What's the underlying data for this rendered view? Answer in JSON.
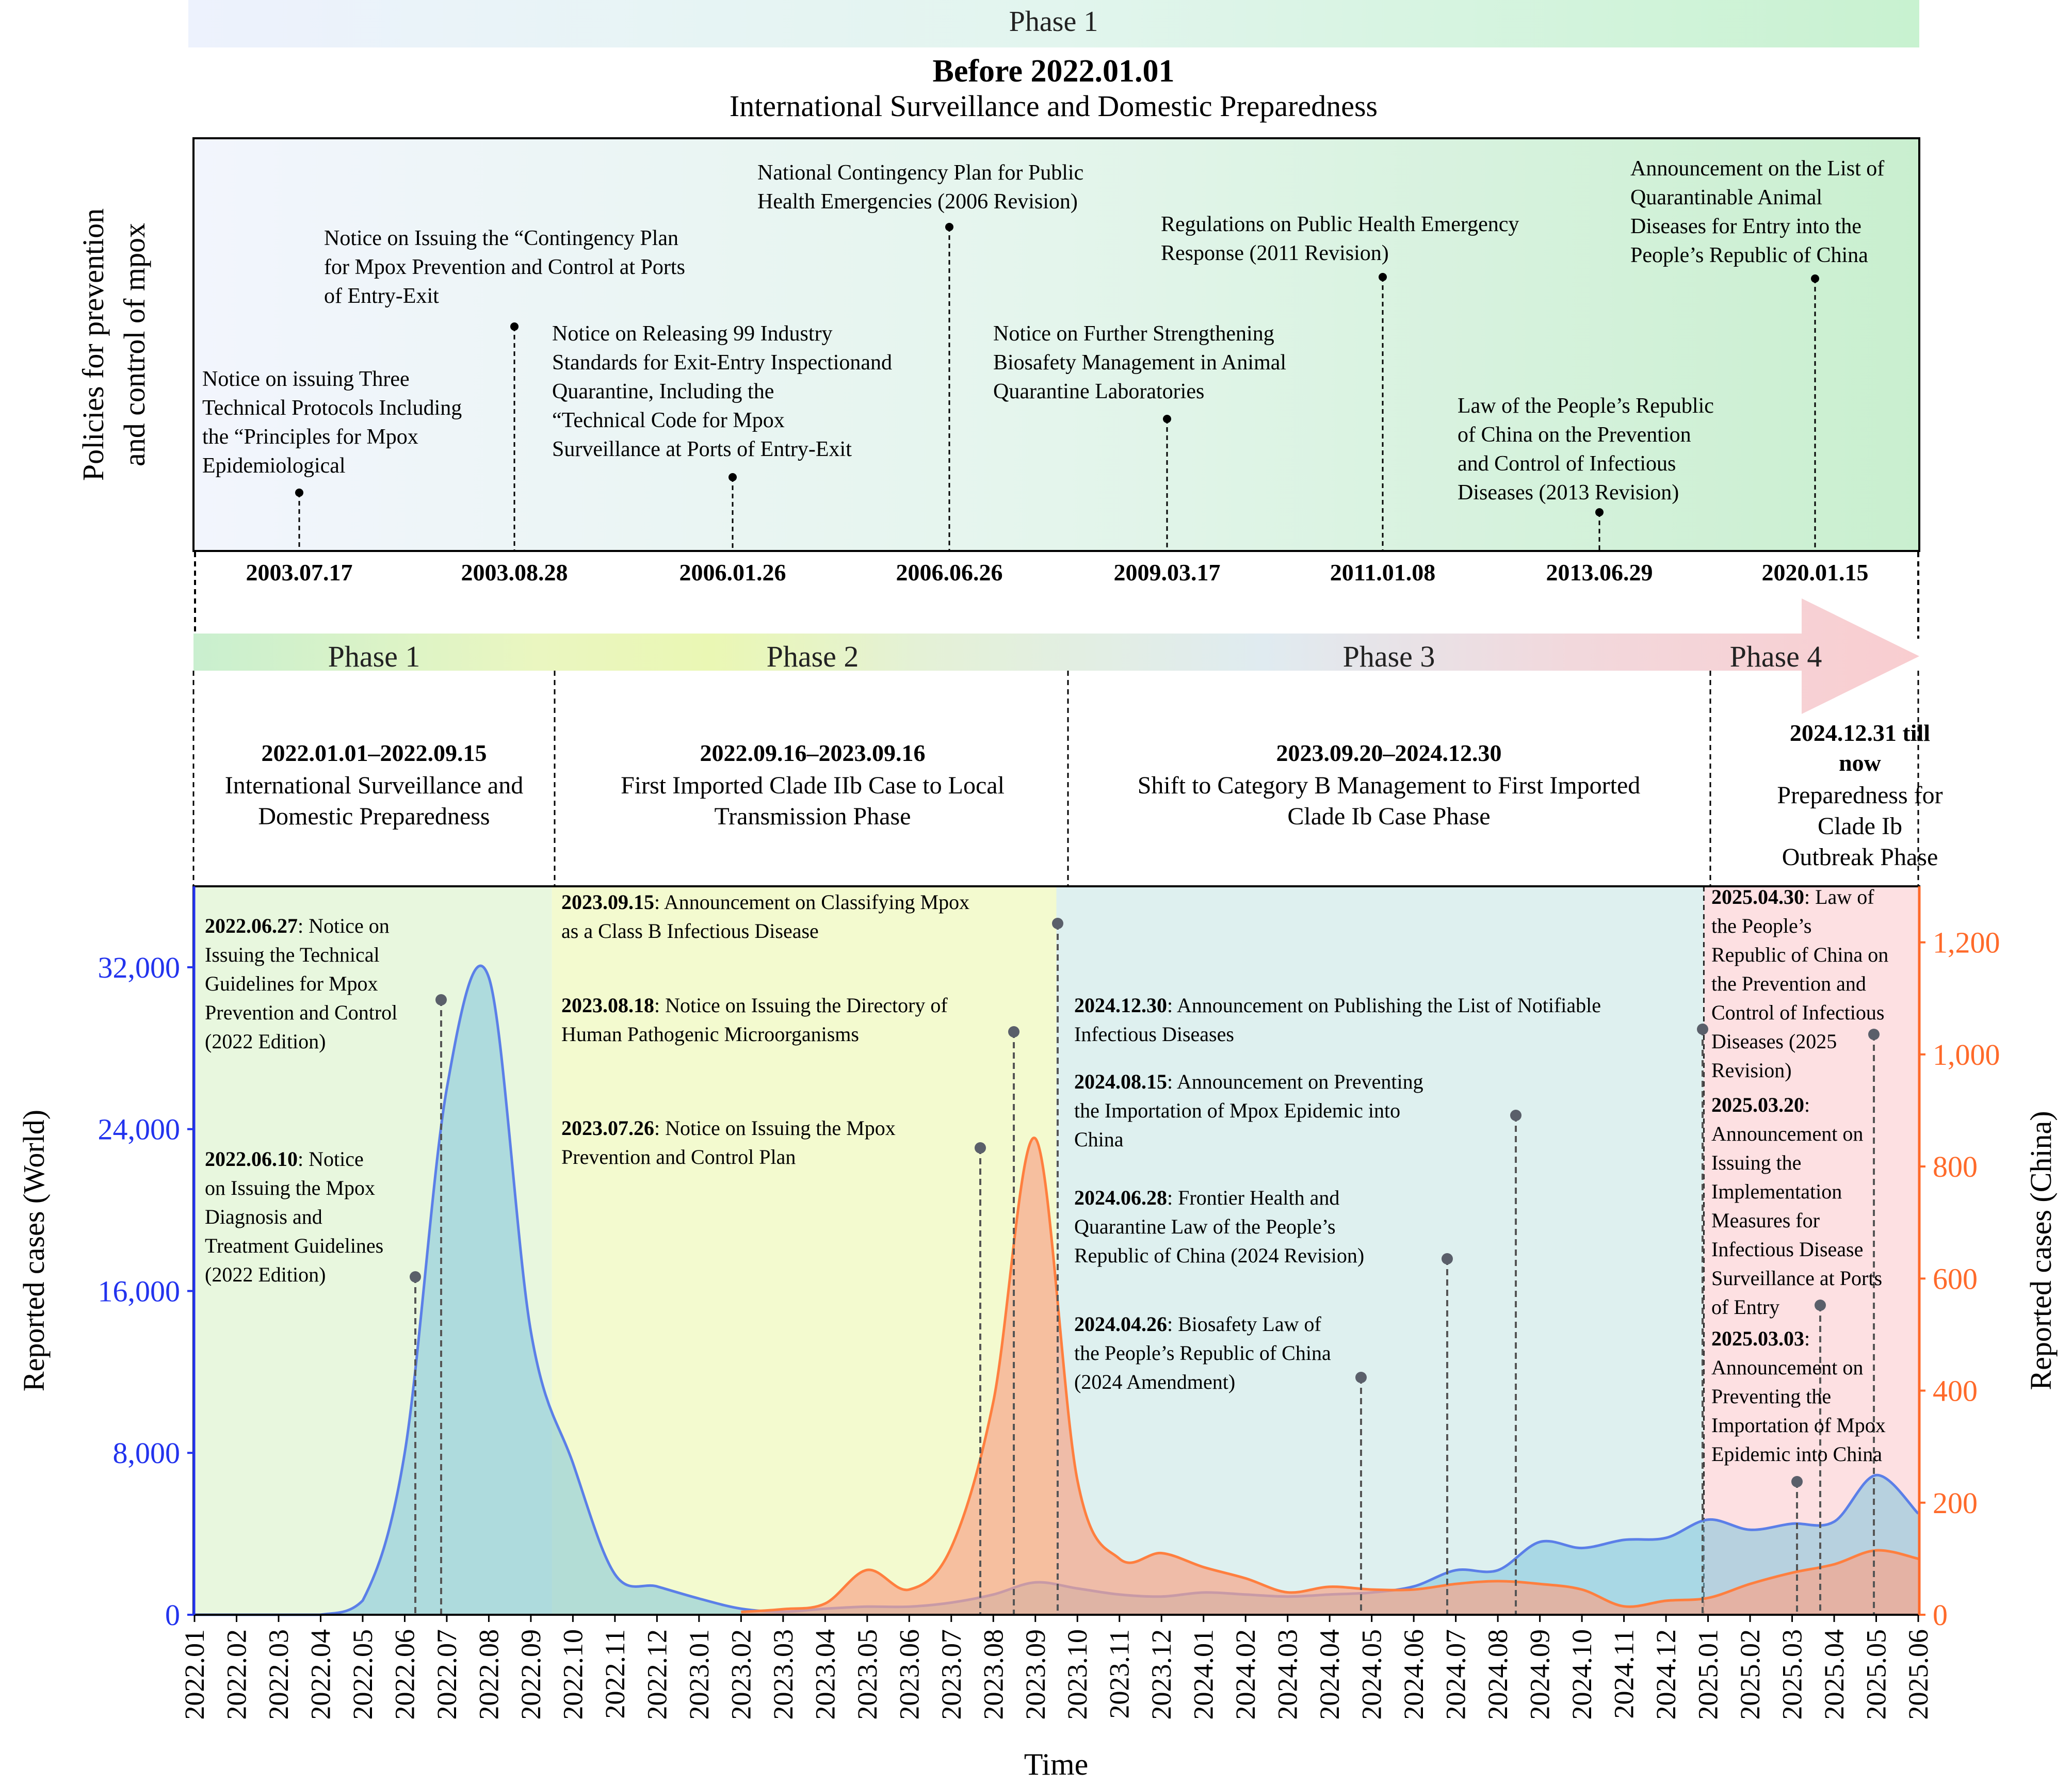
{
  "top": {
    "phase_label": "Phase 1",
    "title_bold": "Before 2022.01.01",
    "subtitle": "International Surveillance and Domestic Preparedness",
    "ylabel_lines": [
      "Policies for prevention",
      "and control of mpox"
    ]
  },
  "policies": [
    {
      "date": "2003.07.17",
      "lines": [
        "Notice on issuing Three",
        "Technical Protocols Including",
        "the “Principles for Mpox",
        "Epidemiological"
      ]
    },
    {
      "date": "2003.08.28",
      "lines": [
        "Notice on Issuing the “Contingency Plan",
        "for Mpox Prevention and Control at Ports",
        "of Entry-Exit"
      ]
    },
    {
      "date": "2006.01.26",
      "lines": [
        "Notice on Releasing 99 Industry",
        "Standards for Exit-Entry Inspectionand",
        "Quarantine, Including the",
        "“Technical Code for Mpox",
        "Surveillance at Ports of Entry-Exit"
      ]
    },
    {
      "date": "2006.06.26",
      "lines": [
        "National Contingency Plan for Public",
        "Health Emergencies (2006 Revision)"
      ]
    },
    {
      "date": "2009.03.17",
      "lines": [
        "Notice on Further Strengthening",
        "Biosafety Management in Animal",
        "Quarantine Laboratories"
      ]
    },
    {
      "date": "2011.01.08",
      "lines": [
        "Regulations on Public Health Emergency",
        "Response (2011 Revision)"
      ]
    },
    {
      "date": "2013.06.29",
      "lines": [
        "Law of the People’s Republic",
        "of China on the Prevention",
        "and Control of Infectious",
        "Diseases (2013 Revision)"
      ]
    },
    {
      "date": "2020.01.15",
      "lines": [
        "Announcement on the List of",
        "Quarantinable Animal",
        "Diseases for Entry into the",
        "People’s Republic of China"
      ]
    }
  ],
  "phases": [
    {
      "label": "Phase 1",
      "dates": "2022.01.01–2022.09.15",
      "desc": [
        "International Surveillance and",
        "Domestic Preparedness"
      ]
    },
    {
      "label": "Phase 2",
      "dates": "2022.09.16–2023.09.16",
      "desc": [
        "First Imported Clade IIb Case to Local",
        "Transmission Phase"
      ]
    },
    {
      "label": "Phase 3",
      "dates": "2023.09.20–2024.12.30",
      "desc": [
        "Shift to Category B Management to First Imported",
        "Clade Ib Case Phase"
      ]
    },
    {
      "label": "Phase 4",
      "dates": [
        "2024.12.31 till",
        "now"
      ],
      "desc": [
        "Preparedness for",
        "Clade Ib",
        "Outbreak Phase"
      ]
    }
  ],
  "annotations": [
    {
      "date": "2022.06.27",
      "lines": [
        "Notice on",
        "Issuing the Technical",
        "Guidelines for Mpox",
        "Prevention and Control",
        "(2022 Edition)"
      ]
    },
    {
      "date": "2022.06.10",
      "lines": [
        "Notice",
        "on Issuing the Mpox",
        "Diagnosis and",
        "Treatment Guidelines",
        "(2022 Edition)"
      ]
    },
    {
      "date": "2023.09.15",
      "lines": [
        "Announcement on Classifying Mpox",
        "as a Class B Infectious Disease"
      ]
    },
    {
      "date": "2023.08.18",
      "lines": [
        "Notice on Issuing the Directory of",
        "Human Pathogenic Microorganisms"
      ]
    },
    {
      "date": "2023.07.26",
      "lines": [
        "Notice on Issuing the Mpox",
        "Prevention and Control Plan"
      ]
    },
    {
      "date": "2024.12.30",
      "lines": [
        "Announcement on Publishing the List of Notifiable",
        "Infectious Diseases"
      ]
    },
    {
      "date": "2024.08.15",
      "lines": [
        "Announcement on Preventing",
        "the Importation of Mpox Epidemic into",
        "China"
      ]
    },
    {
      "date": "2024.06.28",
      "lines": [
        "Frontier Health and",
        "Quarantine Law of the People’s",
        "Republic of China (2024 Revision)"
      ]
    },
    {
      "date": "2024.04.26",
      "lines": [
        "Biosafety Law of",
        "the People’s Republic of China",
        "(2024 Amendment)"
      ]
    },
    {
      "date": "2025.04.30",
      "lines": [
        "Law of",
        "the People’s",
        "Republic of China on",
        "the Prevention and",
        "Control of Infectious",
        "Diseases (2025",
        "Revision)"
      ]
    },
    {
      "date": "2025.03.20",
      "lines": [
        ":",
        "Announcement on",
        "Issuing the",
        "Implementation",
        "Measures for",
        "Infectious Disease",
        "Surveillance at Ports",
        "of Entry"
      ]
    },
    {
      "date": "2025.03.03",
      "lines": [
        ":",
        "Announcement on",
        "Preventing the",
        "Importation of Mpox",
        "Epidemic into China"
      ]
    }
  ],
  "chart_data": {
    "type": "area",
    "xlabel": "Time",
    "ylabel_left": "Reported cases (World)",
    "ylabel_right": "Reported cases (China)",
    "ylim_left": [
      0,
      36000
    ],
    "ylim_right": [
      0,
      1300
    ],
    "yticks_left": [
      "0",
      "8,000",
      "16,000",
      "24,000",
      "32,000"
    ],
    "yticks_right": [
      "0",
      "200",
      "400",
      "600",
      "800",
      "1,000",
      "1,200"
    ],
    "x": [
      "2022.01",
      "2022.02",
      "2022.03",
      "2022.04",
      "2022.05",
      "2022.06",
      "2022.07",
      "2022.08",
      "2022.09",
      "2022.10",
      "2022.11",
      "2022.12",
      "2023.01",
      "2023.02",
      "2023.03",
      "2023.04",
      "2023.05",
      "2023.06",
      "2023.07",
      "2023.08",
      "2023.09",
      "2023.10",
      "2023.11",
      "2023.12",
      "2024.01",
      "2024.02",
      "2024.03",
      "2024.04",
      "2024.05",
      "2024.06",
      "2024.07",
      "2024.08",
      "2024.09",
      "2024.10",
      "2024.11",
      "2024.12",
      "2025.01",
      "2025.02",
      "2025.03",
      "2025.04",
      "2025.05",
      "2025.06"
    ],
    "series": [
      {
        "name": "Reported cases (World)",
        "axis": "left",
        "color": "#5b7fe8",
        "fill": "#7ec4dc",
        "values": [
          0,
          0,
          0,
          0,
          700,
          8000,
          26000,
          31500,
          14000,
          7500,
          2000,
          1400,
          800,
          300,
          150,
          300,
          400,
          400,
          600,
          1000,
          1600,
          1300,
          1000,
          900,
          1100,
          1000,
          900,
          1000,
          1100,
          1400,
          2200,
          2200,
          3600,
          3300,
          3700,
          3800,
          4700,
          4200,
          4500,
          4600,
          6900,
          5000
        ]
      },
      {
        "name": "Reported cases (China)",
        "axis": "right",
        "color": "#ff7f3f",
        "fill": "#f6a58a",
        "values": [
          null,
          null,
          null,
          null,
          null,
          null,
          null,
          null,
          null,
          null,
          null,
          null,
          null,
          5,
          10,
          20,
          80,
          45,
          120,
          380,
          850,
          240,
          100,
          110,
          85,
          65,
          40,
          50,
          45,
          45,
          55,
          60,
          55,
          45,
          15,
          25,
          30,
          55,
          75,
          90,
          115,
          100
        ]
      }
    ],
    "grid": false,
    "legend": "none"
  }
}
